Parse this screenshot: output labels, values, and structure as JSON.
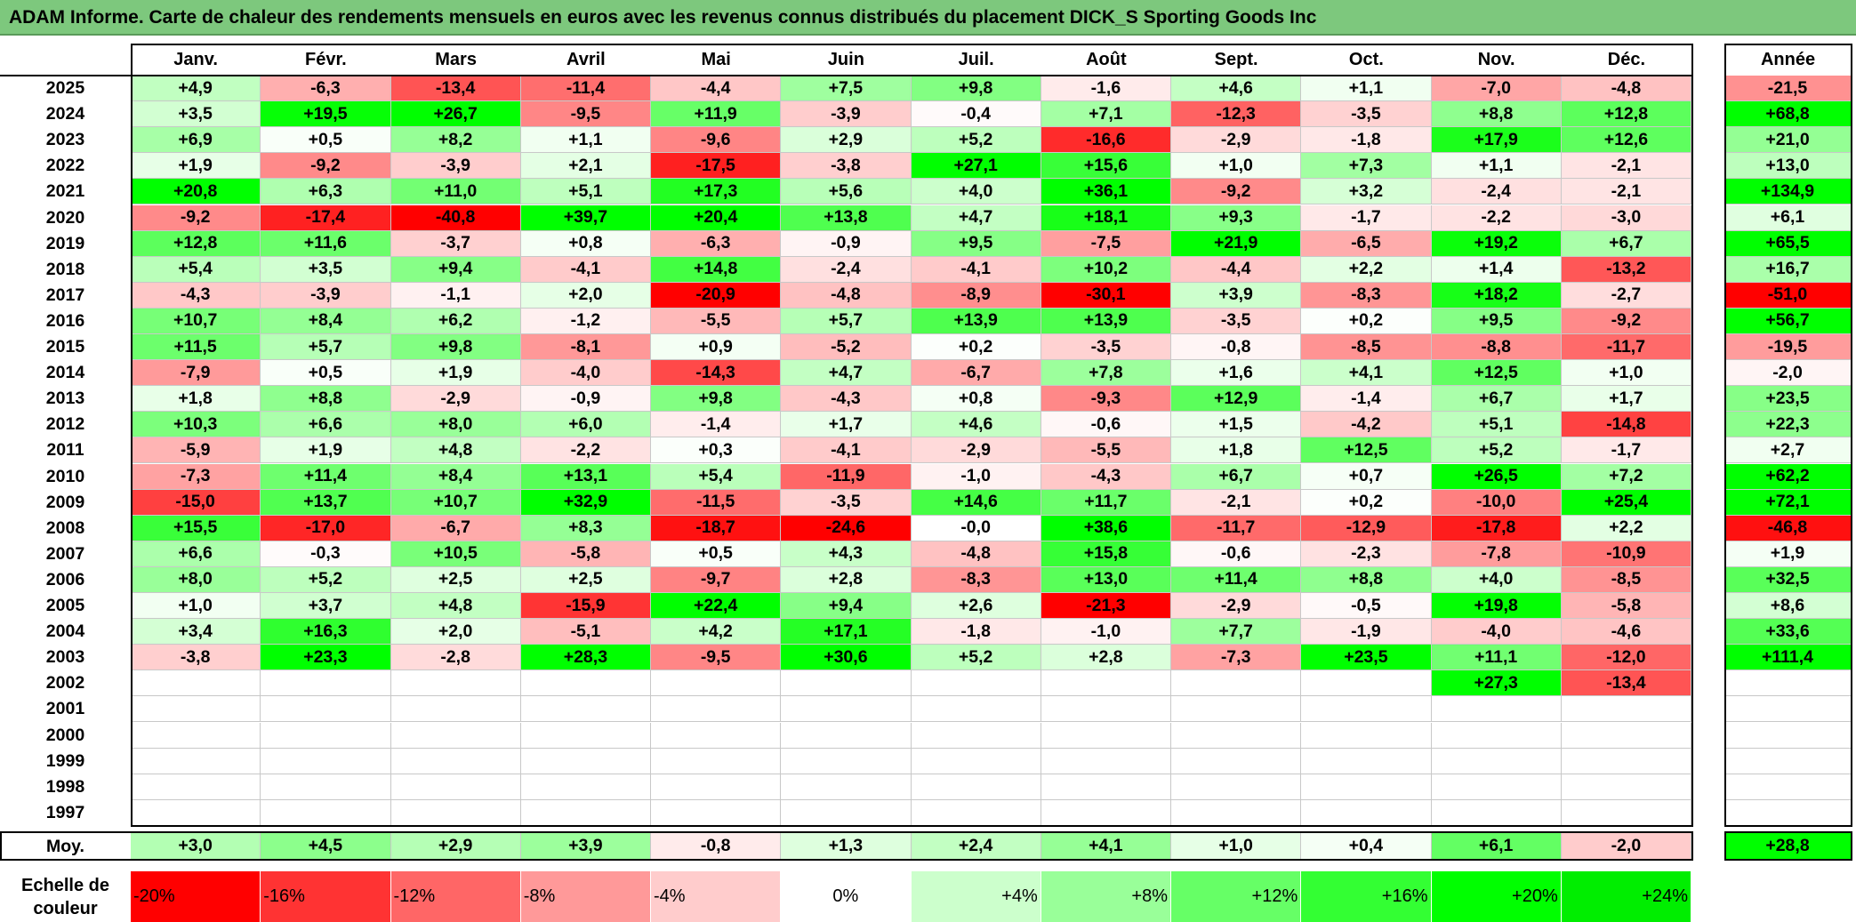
{
  "title": "ADAM Informe. Carte de chaleur des rendements mensuels en euros avec les revenus connus distribués du placement DICK_S Sporting Goods Inc",
  "chart_data": {
    "type": "heatmap",
    "title": "ADAM Informe. Carte de chaleur des rendements mensuels en euros avec les revenus connus distribués du placement DICK_S Sporting Goods Inc",
    "columns": [
      "Janv.",
      "Févr.",
      "Mars",
      "Avril",
      "Mai",
      "Juin",
      "Juil.",
      "Août",
      "Sept.",
      "Oct.",
      "Nov.",
      "Déc."
    ],
    "year_column_label": "Année",
    "rows": [
      {
        "year": "2025",
        "months": [
          "+4,9",
          "-6,3",
          "-13,4",
          "-11,4",
          "-4,4",
          "+7,5",
          "+9,8",
          "-1,6",
          "+4,6",
          "+1,1",
          "-7,0",
          "-4,8"
        ],
        "total": "-21,5"
      },
      {
        "year": "2024",
        "months": [
          "+3,5",
          "+19,5",
          "+26,7",
          "-9,5",
          "+11,9",
          "-3,9",
          "-0,4",
          "+7,1",
          "-12,3",
          "-3,5",
          "+8,8",
          "+12,8"
        ],
        "total": "+68,8"
      },
      {
        "year": "2023",
        "months": [
          "+6,9",
          "+0,5",
          "+8,2",
          "+1,1",
          "-9,6",
          "+2,9",
          "+5,2",
          "-16,6",
          "-2,9",
          "-1,8",
          "+17,9",
          "+12,6"
        ],
        "total": "+21,0"
      },
      {
        "year": "2022",
        "months": [
          "+1,9",
          "-9,2",
          "-3,9",
          "+2,1",
          "-17,5",
          "-3,8",
          "+27,1",
          "+15,6",
          "+1,0",
          "+7,3",
          "+1,1",
          "-2,1"
        ],
        "total": "+13,0"
      },
      {
        "year": "2021",
        "months": [
          "+20,8",
          "+6,3",
          "+11,0",
          "+5,1",
          "+17,3",
          "+5,6",
          "+4,0",
          "+36,1",
          "-9,2",
          "+3,2",
          "-2,4",
          "-2,1"
        ],
        "total": "+134,9"
      },
      {
        "year": "2020",
        "months": [
          "-9,2",
          "-17,4",
          "-40,8",
          "+39,7",
          "+20,4",
          "+13,8",
          "+4,7",
          "+18,1",
          "+9,3",
          "-1,7",
          "-2,2",
          "-3,0"
        ],
        "total": "+6,1"
      },
      {
        "year": "2019",
        "months": [
          "+12,8",
          "+11,6",
          "-3,7",
          "+0,8",
          "-6,3",
          "-0,9",
          "+9,5",
          "-7,5",
          "+21,9",
          "-6,5",
          "+19,2",
          "+6,7"
        ],
        "total": "+65,5"
      },
      {
        "year": "2018",
        "months": [
          "+5,4",
          "+3,5",
          "+9,4",
          "-4,1",
          "+14,8",
          "-2,4",
          "-4,1",
          "+10,2",
          "-4,4",
          "+2,2",
          "+1,4",
          "-13,2"
        ],
        "total": "+16,7"
      },
      {
        "year": "2017",
        "months": [
          "-4,3",
          "-3,9",
          "-1,1",
          "+2,0",
          "-20,9",
          "-4,8",
          "-8,9",
          "-30,1",
          "+3,9",
          "-8,3",
          "+18,2",
          "-2,7"
        ],
        "total": "-51,0"
      },
      {
        "year": "2016",
        "months": [
          "+10,7",
          "+8,4",
          "+6,2",
          "-1,2",
          "-5,5",
          "+5,7",
          "+13,9",
          "+13,9",
          "-3,5",
          "+0,2",
          "+9,5",
          "-9,2"
        ],
        "total": "+56,7"
      },
      {
        "year": "2015",
        "months": [
          "+11,5",
          "+5,7",
          "+9,8",
          "-8,1",
          "+0,9",
          "-5,2",
          "+0,2",
          "-3,5",
          "-0,8",
          "-8,5",
          "-8,8",
          "-11,7"
        ],
        "total": "-19,5"
      },
      {
        "year": "2014",
        "months": [
          "-7,9",
          "+0,5",
          "+1,9",
          "-4,0",
          "-14,3",
          "+4,7",
          "-6,7",
          "+7,8",
          "+1,6",
          "+4,1",
          "+12,5",
          "+1,0"
        ],
        "total": "-2,0"
      },
      {
        "year": "2013",
        "months": [
          "+1,8",
          "+8,8",
          "-2,9",
          "-0,9",
          "+9,8",
          "-4,3",
          "+0,8",
          "-9,3",
          "+12,9",
          "-1,4",
          "+6,7",
          "+1,7"
        ],
        "total": "+23,5"
      },
      {
        "year": "2012",
        "months": [
          "+10,3",
          "+6,6",
          "+8,0",
          "+6,0",
          "-1,4",
          "+1,7",
          "+4,6",
          "-0,6",
          "+1,5",
          "-4,2",
          "+5,1",
          "-14,8"
        ],
        "total": "+22,3"
      },
      {
        "year": "2011",
        "months": [
          "-5,9",
          "+1,9",
          "+4,8",
          "-2,2",
          "+0,3",
          "-4,1",
          "-2,9",
          "-5,5",
          "+1,8",
          "+12,5",
          "+5,2",
          "-1,7"
        ],
        "total": "+2,7"
      },
      {
        "year": "2010",
        "months": [
          "-7,3",
          "+11,4",
          "+8,4",
          "+13,1",
          "+5,4",
          "-11,9",
          "-1,0",
          "-4,3",
          "+6,7",
          "+0,7",
          "+26,5",
          "+7,2"
        ],
        "total": "+62,2"
      },
      {
        "year": "2009",
        "months": [
          "-15,0",
          "+13,7",
          "+10,7",
          "+32,9",
          "-11,5",
          "-3,5",
          "+14,6",
          "+11,7",
          "-2,1",
          "+0,2",
          "-10,0",
          "+25,4"
        ],
        "total": "+72,1"
      },
      {
        "year": "2008",
        "months": [
          "+15,5",
          "-17,0",
          "-6,7",
          "+8,3",
          "-18,7",
          "-24,6",
          "-0,0",
          "+38,6",
          "-11,7",
          "-12,9",
          "-17,8",
          "+2,2"
        ],
        "total": "-46,8"
      },
      {
        "year": "2007",
        "months": [
          "+6,6",
          "-0,3",
          "+10,5",
          "-5,8",
          "+0,5",
          "+4,3",
          "-4,8",
          "+15,8",
          "-0,6",
          "-2,3",
          "-7,8",
          "-10,9"
        ],
        "total": "+1,9"
      },
      {
        "year": "2006",
        "months": [
          "+8,0",
          "+5,2",
          "+2,5",
          "+2,5",
          "-9,7",
          "+2,8",
          "-8,3",
          "+13,0",
          "+11,4",
          "+8,8",
          "+4,0",
          "-8,5"
        ],
        "total": "+32,5"
      },
      {
        "year": "2005",
        "months": [
          "+1,0",
          "+3,7",
          "+4,8",
          "-15,9",
          "+22,4",
          "+9,4",
          "+2,6",
          "-21,3",
          "-2,9",
          "-0,5",
          "+19,8",
          "-5,8"
        ],
        "total": "+8,6"
      },
      {
        "year": "2004",
        "months": [
          "+3,4",
          "+16,3",
          "+2,0",
          "-5,1",
          "+4,2",
          "+17,1",
          "-1,8",
          "-1,0",
          "+7,7",
          "-1,9",
          "-4,0",
          "-4,6"
        ],
        "total": "+33,6"
      },
      {
        "year": "2003",
        "months": [
          "-3,8",
          "+23,3",
          "-2,8",
          "+28,3",
          "-9,5",
          "+30,6",
          "+5,2",
          "+2,8",
          "-7,3",
          "+23,5",
          "+11,1",
          "-12,0"
        ],
        "total": "+111,4"
      },
      {
        "year": "2002",
        "months": [
          "",
          "",
          "",
          "",
          "",
          "",
          "",
          "",
          "",
          "",
          "+27,3",
          "-13,4"
        ],
        "total": ""
      },
      {
        "year": "2001",
        "months": [
          "",
          "",
          "",
          "",
          "",
          "",
          "",
          "",
          "",
          "",
          "",
          ""
        ],
        "total": ""
      },
      {
        "year": "2000",
        "months": [
          "",
          "",
          "",
          "",
          "",
          "",
          "",
          "",
          "",
          "",
          "",
          ""
        ],
        "total": ""
      },
      {
        "year": "1999",
        "months": [
          "",
          "",
          "",
          "",
          "",
          "",
          "",
          "",
          "",
          "",
          "",
          ""
        ],
        "total": ""
      },
      {
        "year": "1998",
        "months": [
          "",
          "",
          "",
          "",
          "",
          "",
          "",
          "",
          "",
          "",
          "",
          ""
        ],
        "total": ""
      },
      {
        "year": "1997",
        "months": [
          "",
          "",
          "",
          "",
          "",
          "",
          "",
          "",
          "",
          "",
          "",
          ""
        ],
        "total": ""
      }
    ],
    "average": {
      "label": "Moy.",
      "months": [
        "+3,0",
        "+4,5",
        "+2,9",
        "+3,9",
        "-0,8",
        "+1,3",
        "+2,4",
        "+4,1",
        "+1,0",
        "+0,4",
        "+6,1",
        "-2,0"
      ],
      "total": "+28,8"
    },
    "color_scale": {
      "label": "Echelle de couleur",
      "steps": [
        {
          "label": "-20%",
          "value": -20,
          "color": "#ff0000"
        },
        {
          "label": "-16%",
          "value": -16,
          "color": "#ff3333"
        },
        {
          "label": "-12%",
          "value": -12,
          "color": "#ff6666"
        },
        {
          "label": "-8%",
          "value": -8,
          "color": "#ff9999"
        },
        {
          "label": "-4%",
          "value": -4,
          "color": "#ffcccc"
        },
        {
          "label": "0%",
          "value": 0,
          "color": "#ffffff"
        },
        {
          "label": "+4%",
          "value": 4,
          "color": "#ccffcc"
        },
        {
          "label": "+8%",
          "value": 8,
          "color": "#99ff99"
        },
        {
          "label": "+12%",
          "value": 12,
          "color": "#66ff66"
        },
        {
          "label": "+16%",
          "value": 16,
          "color": "#33ff33"
        },
        {
          "label": "+20%",
          "value": 20,
          "color": "#00ff00"
        },
        {
          "label": "+24%",
          "value": 24,
          "color": "#00ee00"
        }
      ]
    },
    "colors": {
      "title_bar": "#7dc87d",
      "negative_max": "#ff0000",
      "neutral": "#ffffff",
      "positive_max": "#00ff00"
    }
  }
}
